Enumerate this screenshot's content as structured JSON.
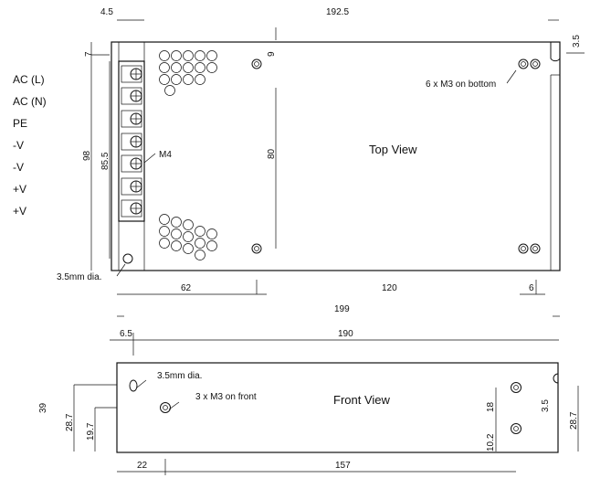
{
  "top_view": {
    "title": "Top View",
    "terminals": [
      "AC (L)",
      "AC (N)",
      "PE",
      "-V",
      "-V",
      "+V",
      "+V"
    ],
    "terminal_screw": "M4",
    "mount_note": "6 x M3 on bottom",
    "hole_note": "3.5mm dia.",
    "dims": {
      "left_offset": "4.5",
      "overall_width_top": "192.5",
      "right_hole": "3.5",
      "top_gap": "7",
      "upper_hole_offset": "9",
      "height_total": "98",
      "height_terminals": "85.5",
      "hole_spacing_v": "80",
      "bottom_62": "62",
      "bottom_120": "120",
      "bottom_6": "6",
      "overall_199": "199"
    }
  },
  "front_view": {
    "title": "Front View",
    "hole_note": "3.5mm dia.",
    "mount_note": "3 x M3 on front",
    "dims": {
      "left_6_5": "6.5",
      "width_190": "190",
      "height_39": "39",
      "left_28_7": "28.7",
      "left_19_7": "19.7",
      "right_18": "18",
      "right_10_2": "10.2",
      "right_3_5": "3.5",
      "right_28_7": "28.7",
      "bottom_22": "22",
      "bottom_157": "157"
    }
  }
}
